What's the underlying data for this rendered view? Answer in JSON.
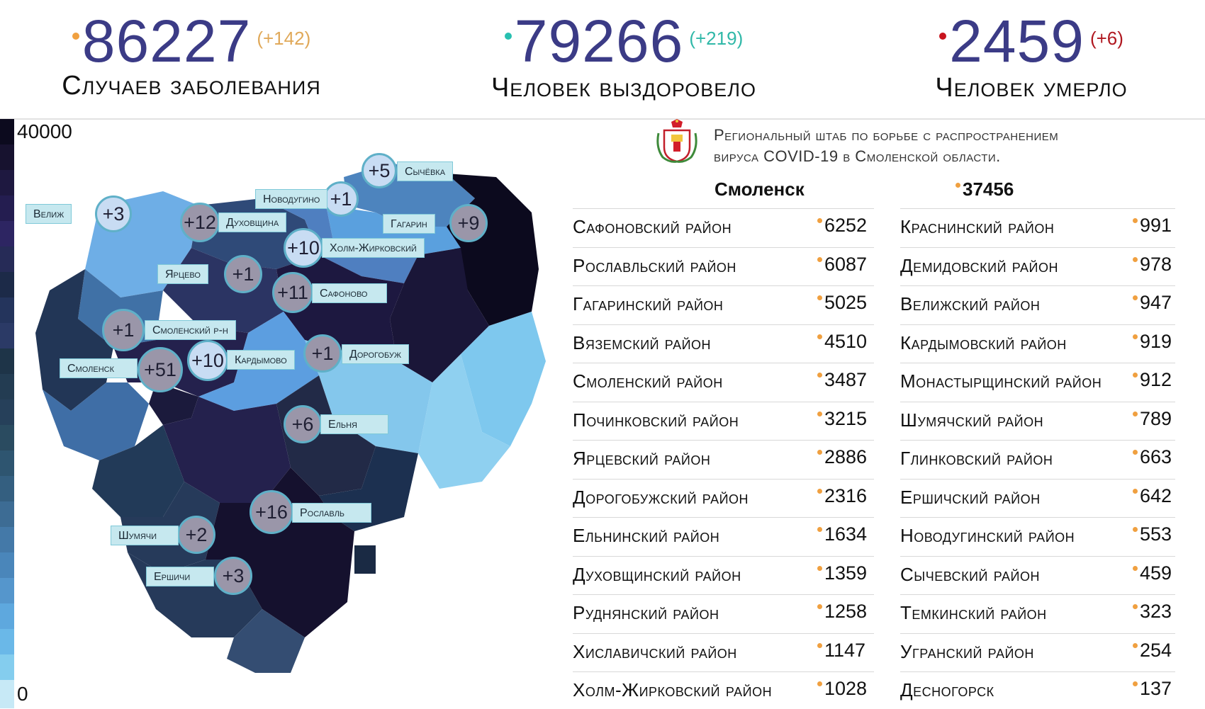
{
  "stats": {
    "cases": {
      "value": "86227",
      "delta": "(+142)",
      "caption": "Случаев заболевания",
      "dot_color": "#f0a040",
      "delta_color": "#e0a95a"
    },
    "recovered": {
      "value": "79266",
      "delta": "(+219)",
      "caption": "Человек выздоровело",
      "dot_color": "#28c0b0",
      "delta_color": "#30b8a8"
    },
    "deaths": {
      "value": "2459",
      "delta": "(+6)",
      "caption": "Человек умерло",
      "dot_color": "#c8141e",
      "delta_color": "#b01820"
    }
  },
  "legend": {
    "max": "40000",
    "min": "0"
  },
  "map_labels": [
    {
      "delta": "+5",
      "name": "Сычёвка"
    },
    {
      "delta": "+1",
      "name": "Новодугино"
    },
    {
      "delta": "+3",
      "name": "Велиж"
    },
    {
      "delta": "+12",
      "name": "Духовщина"
    },
    {
      "delta": "+9",
      "name": "Гагарин"
    },
    {
      "delta": "+10",
      "name": "Холм-Жирковский"
    },
    {
      "delta": "+1",
      "name": "Ярцево"
    },
    {
      "delta": "+11",
      "name": "Сафоново"
    },
    {
      "delta": "+1",
      "name": "Смоленский р-н"
    },
    {
      "delta": "+51",
      "name": "Смоленск"
    },
    {
      "delta": "+10",
      "name": "Кардымово"
    },
    {
      "delta": "+1",
      "name": "Дорогобуж"
    },
    {
      "delta": "+6",
      "name": "Ельня"
    },
    {
      "delta": "+16",
      "name": "Рославль"
    },
    {
      "delta": "+2",
      "name": "Шумячи"
    },
    {
      "delta": "+3",
      "name": "Ершичи"
    }
  ],
  "hq": {
    "line1": "Региональный штаб по борьбе с распространением",
    "line2": "вируса COVID-19 в Смоленской области.",
    "emblem": "coat-of-arms-icon"
  },
  "city": {
    "name": "Смоленск",
    "value": "37456"
  },
  "left_table": [
    {
      "name": "Сафоновский район",
      "value": "6252"
    },
    {
      "name": "Рославльский район",
      "value": "6087"
    },
    {
      "name": "Гагаринский район",
      "value": "5025"
    },
    {
      "name": "Вяземский район",
      "value": "4510"
    },
    {
      "name": "Смоленский район",
      "value": "3487"
    },
    {
      "name": "Починковский район",
      "value": "3215"
    },
    {
      "name": "Ярцевский район",
      "value": "2886"
    },
    {
      "name": "Дорогобужский район",
      "value": "2316"
    },
    {
      "name": "Ельнинский район",
      "value": "1634"
    },
    {
      "name": "Духовщинский район",
      "value": "1359"
    },
    {
      "name": "Руднянский район",
      "value": "1258"
    },
    {
      "name": "Хиславичский район",
      "value": "1147"
    },
    {
      "name": "Холм-Жирковский район",
      "value": "1028"
    }
  ],
  "right_table": [
    {
      "name": "Краснинский район",
      "value": "991"
    },
    {
      "name": "Демидовский район",
      "value": "978"
    },
    {
      "name": "Велижский район",
      "value": "947"
    },
    {
      "name": "Кардымовский район",
      "value": "919"
    },
    {
      "name": "Монастырщинский район",
      "value": "912"
    },
    {
      "name": "Шумячский район",
      "value": "789"
    },
    {
      "name": "Глинковский район",
      "value": "663"
    },
    {
      "name": "Ершичский район",
      "value": "642"
    },
    {
      "name": "Новодугинский район",
      "value": "553"
    },
    {
      "name": "Сычевский район",
      "value": "459"
    },
    {
      "name": "Темкинский район",
      "value": "323"
    },
    {
      "name": "Угранский район",
      "value": "254"
    },
    {
      "name": "Десногорск",
      "value": "137"
    }
  ]
}
